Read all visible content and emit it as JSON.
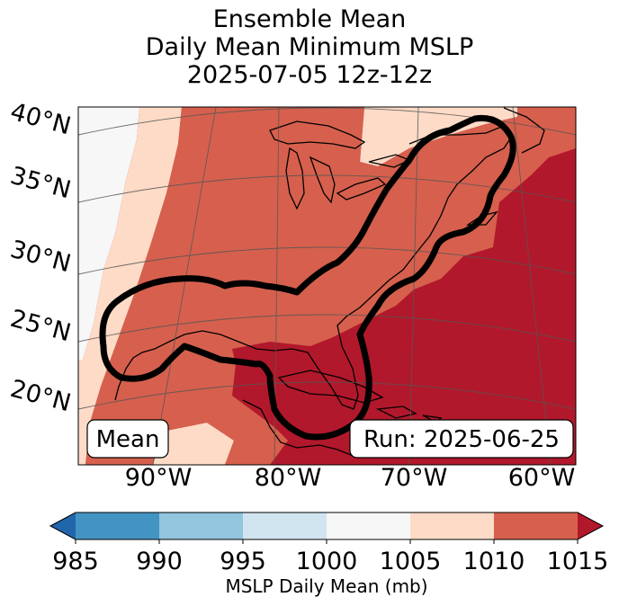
{
  "chart_data": {
    "type": "heatmap",
    "title_lines": [
      "Ensemble Mean",
      "Daily Mean Minimum MSLP",
      "2025-07-05 12z-12z"
    ],
    "lat_labels": [
      "40°N",
      "35°N",
      "30°N",
      "25°N",
      "20°N"
    ],
    "lon_labels": [
      "90°W",
      "80°W",
      "70°W",
      "60°W"
    ],
    "annotation_left": "Mean",
    "annotation_right": "Run: 2025-06-25",
    "colorbar": {
      "label": "MSLP Daily Mean (mb)",
      "ticks": [
        "985",
        "990",
        "995",
        "1000",
        "1005",
        "1010",
        "1015"
      ],
      "bins": [
        {
          "range": [
            985,
            990
          ],
          "color": "#4393c3"
        },
        {
          "range": [
            990,
            995
          ],
          "color": "#92c5de"
        },
        {
          "range": [
            995,
            1000
          ],
          "color": "#d1e5f0"
        },
        {
          "range": [
            1000,
            1005
          ],
          "color": "#f7f7f7"
        },
        {
          "range": [
            1005,
            1010
          ],
          "color": "#fddbc7"
        },
        {
          "range": [
            1010,
            1015
          ],
          "color": "#d6604d"
        }
      ],
      "under_color": "#2166ac",
      "over_color": "#b2182b",
      "extend": "both"
    }
  }
}
